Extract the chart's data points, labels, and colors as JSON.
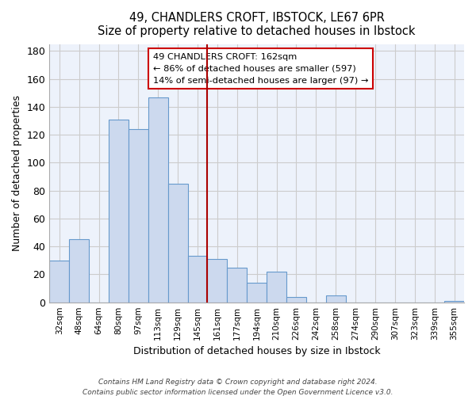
{
  "title": "49, CHANDLERS CROFT, IBSTOCK, LE67 6PR",
  "subtitle": "Size of property relative to detached houses in Ibstock",
  "xlabel": "Distribution of detached houses by size in Ibstock",
  "ylabel": "Number of detached properties",
  "bar_color": "#ccd9ee",
  "bar_edge_color": "#6699cc",
  "bins": [
    "32sqm",
    "48sqm",
    "64sqm",
    "80sqm",
    "97sqm",
    "113sqm",
    "129sqm",
    "145sqm",
    "161sqm",
    "177sqm",
    "194sqm",
    "210sqm",
    "226sqm",
    "242sqm",
    "258sqm",
    "274sqm",
    "290sqm",
    "307sqm",
    "323sqm",
    "339sqm",
    "355sqm"
  ],
  "values": [
    30,
    45,
    0,
    131,
    124,
    147,
    85,
    33,
    31,
    25,
    14,
    22,
    4,
    0,
    5,
    0,
    0,
    0,
    0,
    0,
    1
  ],
  "ylim": [
    0,
    185
  ],
  "yticks": [
    0,
    20,
    40,
    60,
    80,
    100,
    120,
    140,
    160,
    180
  ],
  "ref_bin_index": 8,
  "annotation_title": "49 CHANDLERS CROFT: 162sqm",
  "annotation_line1": "← 86% of detached houses are smaller (597)",
  "annotation_line2": "14% of semi-detached houses are larger (97) →",
  "footer1": "Contains HM Land Registry data © Crown copyright and database right 2024.",
  "footer2": "Contains public sector information licensed under the Open Government Licence v3.0.",
  "grid_color": "#cccccc",
  "grid_color2": "#e8eef8",
  "ref_line_color": "#aa0000",
  "annotation_box_color": "#ffffff",
  "annotation_box_edge": "#cc0000",
  "bg_color": "#edf2fb"
}
